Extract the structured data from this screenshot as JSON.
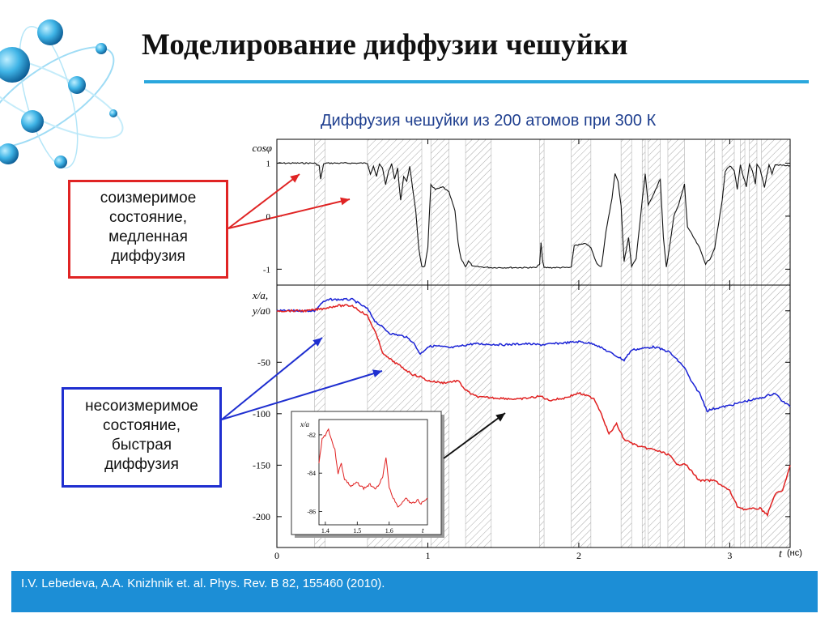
{
  "slide": {
    "title": "Моделирование диффузии чешуйки",
    "subtitle": "Диффузия чешуйки из 200 атомов при 300 К",
    "callout_red": [
      "соизмеримое",
      "состояние,",
      "медленная",
      "диффузия"
    ],
    "callout_blue": [
      "несоизмеримое",
      "состояние,",
      "быстрая",
      "диффузия"
    ],
    "footer": "I.V. Lebedeva, A.A. Knizhnik et. al. Phys. Rev. B  82, 155460 (2010)."
  },
  "colors": {
    "accent": "#2aa7dd",
    "red_frame": "#e02424",
    "blue_frame": "#1f2fd0",
    "footer_bg": "#1c8ed6",
    "series_x": "#e02020",
    "series_y": "#1a22d6"
  },
  "chart_data": [
    {
      "type": "line",
      "ylabel": "cosφ",
      "xlim": [
        0,
        3.4
      ],
      "ylim": [
        -1.3,
        1.45
      ],
      "yticks": [
        1,
        0,
        -1
      ],
      "ytick_labels": [
        "1",
        "0",
        "-1"
      ],
      "shaded_intervals": [
        [
          0.25,
          0.32
        ],
        [
          0.6,
          0.96
        ],
        [
          1.02,
          1.14
        ],
        [
          1.25,
          1.42
        ],
        [
          1.74,
          1.77
        ],
        [
          1.95,
          2.08
        ],
        [
          2.28,
          2.35
        ],
        [
          2.42,
          2.44
        ],
        [
          2.46,
          2.54
        ],
        [
          2.59,
          2.7
        ],
        [
          2.84,
          2.9
        ],
        [
          2.95,
          3.03
        ],
        [
          3.07,
          3.1
        ],
        [
          3.13,
          3.18
        ],
        [
          3.21,
          3.4
        ]
      ],
      "series": [
        {
          "values": [
            [
              0,
              1
            ],
            [
              0.25,
              1
            ],
            [
              0.28,
              0.95
            ],
            [
              0.29,
              0.7
            ],
            [
              0.31,
              0.98
            ],
            [
              0.32,
              1
            ],
            [
              0.6,
              1
            ],
            [
              0.62,
              0.8
            ],
            [
              0.64,
              0.95
            ],
            [
              0.66,
              0.75
            ],
            [
              0.68,
              0.98
            ],
            [
              0.7,
              0.9
            ],
            [
              0.72,
              0.6
            ],
            [
              0.74,
              0.85
            ],
            [
              0.76,
              0.98
            ],
            [
              0.78,
              0.7
            ],
            [
              0.8,
              0.9
            ],
            [
              0.82,
              0.3
            ],
            [
              0.84,
              0.75
            ],
            [
              0.86,
              0.65
            ],
            [
              0.88,
              0.95
            ],
            [
              0.9,
              0.5
            ],
            [
              0.92,
              0.1
            ],
            [
              0.94,
              -0.6
            ],
            [
              0.96,
              -0.95
            ],
            [
              0.98,
              -0.95
            ],
            [
              1.0,
              -0.6
            ],
            [
              1.02,
              0.6
            ],
            [
              1.05,
              0.5
            ],
            [
              1.1,
              0.55
            ],
            [
              1.14,
              0.45
            ],
            [
              1.18,
              0.1
            ],
            [
              1.2,
              -0.5
            ],
            [
              1.22,
              -0.8
            ],
            [
              1.25,
              -0.95
            ],
            [
              1.27,
              -0.85
            ],
            [
              1.3,
              -0.95
            ],
            [
              1.42,
              -0.97
            ],
            [
              1.72,
              -0.97
            ],
            [
              1.74,
              -0.9
            ],
            [
              1.75,
              -0.5
            ],
            [
              1.76,
              -0.85
            ],
            [
              1.77,
              -0.97
            ],
            [
              1.95,
              -0.97
            ],
            [
              1.97,
              -0.55
            ],
            [
              2.05,
              -0.52
            ],
            [
              2.08,
              -0.6
            ],
            [
              2.12,
              -0.9
            ],
            [
              2.15,
              -0.95
            ],
            [
              2.18,
              -0.3
            ],
            [
              2.22,
              0.35
            ],
            [
              2.24,
              0.8
            ],
            [
              2.26,
              0.65
            ],
            [
              2.28,
              0.2
            ],
            [
              2.3,
              -0.85
            ],
            [
              2.33,
              -0.4
            ],
            [
              2.35,
              -0.95
            ],
            [
              2.38,
              -0.8
            ],
            [
              2.42,
              0.3
            ],
            [
              2.44,
              0.8
            ],
            [
              2.46,
              0.2
            ],
            [
              2.5,
              0.45
            ],
            [
              2.54,
              0.7
            ],
            [
              2.56,
              -0.4
            ],
            [
              2.58,
              -0.97
            ],
            [
              2.6,
              -0.6
            ],
            [
              2.63,
              0.0
            ],
            [
              2.66,
              0.2
            ],
            [
              2.7,
              0.6
            ],
            [
              2.72,
              -0.2
            ],
            [
              2.74,
              -0.3
            ],
            [
              2.78,
              -0.5
            ],
            [
              2.8,
              -0.6
            ],
            [
              2.84,
              -0.9
            ],
            [
              2.87,
              -0.8
            ],
            [
              2.9,
              -0.6
            ],
            [
              2.92,
              -0.25
            ],
            [
              2.95,
              0.3
            ],
            [
              2.97,
              0.85
            ],
            [
              3.0,
              0.95
            ],
            [
              3.03,
              0.85
            ],
            [
              3.05,
              0.5
            ],
            [
              3.07,
              0.97
            ],
            [
              3.09,
              0.75
            ],
            [
              3.11,
              0.55
            ],
            [
              3.13,
              0.97
            ],
            [
              3.15,
              0.85
            ],
            [
              3.17,
              0.6
            ],
            [
              3.18,
              0.97
            ],
            [
              3.2,
              0.9
            ],
            [
              3.23,
              0.55
            ],
            [
              3.26,
              0.97
            ],
            [
              3.28,
              0.8
            ],
            [
              3.3,
              0.97
            ],
            [
              3.4,
              0.95
            ]
          ]
        }
      ]
    },
    {
      "type": "line",
      "ylabel": "x/a, y/a",
      "xlabel": "t",
      "xunit": "(нс)",
      "xlim": [
        0,
        3.4
      ],
      "ylim": [
        -230,
        25
      ],
      "xticks": [
        0,
        1,
        2,
        3
      ],
      "xtick_labels": [
        "0",
        "1",
        "2",
        "3"
      ],
      "yticks": [
        0,
        -50,
        -100,
        -150,
        -200
      ],
      "ytick_labels": [
        "0",
        "-50",
        "-100",
        "-150",
        "-200"
      ],
      "series": [
        {
          "color": "#1a22d6",
          "values": [
            [
              0,
              0
            ],
            [
              0.2,
              0
            ],
            [
              0.25,
              0
            ],
            [
              0.3,
              8
            ],
            [
              0.35,
              11
            ],
            [
              0.5,
              11
            ],
            [
              0.6,
              2
            ],
            [
              0.65,
              -10
            ],
            [
              0.75,
              -22
            ],
            [
              0.85,
              -25
            ],
            [
              0.9,
              -30
            ],
            [
              0.95,
              -42
            ],
            [
              1.0,
              -35
            ],
            [
              1.05,
              -34
            ],
            [
              1.15,
              -36
            ],
            [
              1.3,
              -32
            ],
            [
              1.5,
              -33
            ],
            [
              1.65,
              -32
            ],
            [
              1.75,
              -33
            ],
            [
              2.0,
              -30
            ],
            [
              2.1,
              -32
            ],
            [
              2.2,
              -40
            ],
            [
              2.3,
              -48
            ],
            [
              2.35,
              -38
            ],
            [
              2.5,
              -35
            ],
            [
              2.6,
              -40
            ],
            [
              2.7,
              -55
            ],
            [
              2.75,
              -70
            ],
            [
              2.8,
              -80
            ],
            [
              2.85,
              -97
            ],
            [
              2.9,
              -95
            ],
            [
              3.0,
              -92
            ],
            [
              3.1,
              -88
            ],
            [
              3.2,
              -85
            ],
            [
              3.3,
              -80
            ],
            [
              3.35,
              -88
            ],
            [
              3.4,
              -93
            ]
          ]
        },
        {
          "color": "#e02020",
          "values": [
            [
              0,
              0
            ],
            [
              0.2,
              0
            ],
            [
              0.3,
              2
            ],
            [
              0.4,
              5
            ],
            [
              0.5,
              5
            ],
            [
              0.6,
              -5
            ],
            [
              0.65,
              -20
            ],
            [
              0.7,
              -40
            ],
            [
              0.72,
              -44
            ],
            [
              0.8,
              -52
            ],
            [
              0.9,
              -62
            ],
            [
              0.95,
              -64
            ],
            [
              1.0,
              -68
            ],
            [
              1.1,
              -70
            ],
            [
              1.2,
              -68
            ],
            [
              1.25,
              -77
            ],
            [
              1.3,
              -82
            ],
            [
              1.35,
              -84
            ],
            [
              1.5,
              -85
            ],
            [
              1.6,
              -86
            ],
            [
              1.75,
              -83
            ],
            [
              1.8,
              -87
            ],
            [
              1.9,
              -85
            ],
            [
              2.0,
              -80
            ],
            [
              2.1,
              -85
            ],
            [
              2.15,
              -100
            ],
            [
              2.2,
              -120
            ],
            [
              2.25,
              -110
            ],
            [
              2.3,
              -125
            ],
            [
              2.4,
              -132
            ],
            [
              2.5,
              -135
            ],
            [
              2.6,
              -140
            ],
            [
              2.65,
              -150
            ],
            [
              2.7,
              -148
            ],
            [
              2.8,
              -165
            ],
            [
              2.9,
              -165
            ],
            [
              3.0,
              -175
            ],
            [
              3.05,
              -190
            ],
            [
              3.1,
              -193
            ],
            [
              3.2,
              -192
            ],
            [
              3.25,
              -198
            ],
            [
              3.3,
              -178
            ],
            [
              3.35,
              -175
            ],
            [
              3.4,
              -150
            ]
          ]
        }
      ]
    },
    {
      "type": "line",
      "ylabel": "x/a",
      "xlabel": "t",
      "xlim": [
        1.38,
        1.72
      ],
      "ylim": [
        -86.7,
        -81.2
      ],
      "xticks": [
        1.4,
        1.5,
        1.6
      ],
      "xtick_labels": [
        "1.4",
        "1.5",
        "1.6"
      ],
      "yticks": [
        -82,
        -84,
        -86
      ],
      "ytick_labels": [
        "-82",
        "-84",
        "-86"
      ],
      "series": [
        {
          "color": "#e02020",
          "values": [
            [
              1.38,
              -83.5
            ],
            [
              1.39,
              -82.2
            ],
            [
              1.4,
              -82.0
            ],
            [
              1.41,
              -81.7
            ],
            [
              1.42,
              -82.3
            ],
            [
              1.43,
              -82.8
            ],
            [
              1.44,
              -84.0
            ],
            [
              1.45,
              -83.5
            ],
            [
              1.46,
              -84.3
            ],
            [
              1.48,
              -84.7
            ],
            [
              1.5,
              -84.5
            ],
            [
              1.52,
              -84.8
            ],
            [
              1.54,
              -84.6
            ],
            [
              1.56,
              -84.8
            ],
            [
              1.58,
              -84.2
            ],
            [
              1.59,
              -83.2
            ],
            [
              1.6,
              -84.7
            ],
            [
              1.61,
              -85.2
            ],
            [
              1.63,
              -85.8
            ],
            [
              1.65,
              -85.3
            ],
            [
              1.67,
              -85.6
            ],
            [
              1.69,
              -85.4
            ],
            [
              1.7,
              -85.6
            ],
            [
              1.72,
              -85.3
            ]
          ]
        }
      ]
    }
  ]
}
